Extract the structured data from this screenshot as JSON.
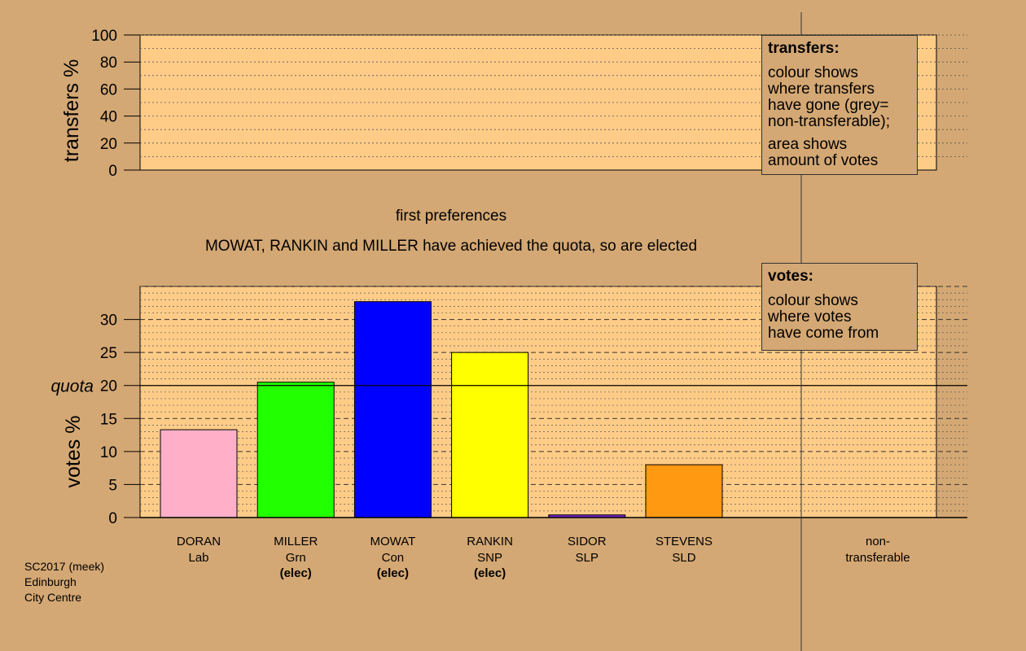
{
  "credit": {
    "lines": [
      "SC2017 (meek)",
      "Edinburgh",
      "City Centre"
    ]
  },
  "transfers_panel": {
    "ylabel": "transfers %",
    "ylim": [
      0,
      100
    ],
    "ticks": [
      0,
      20,
      40,
      60,
      80,
      100
    ]
  },
  "transfers_box": {
    "title": "transfers:",
    "lines": [
      "colour shows",
      "where transfers",
      "have gone (grey=",
      "non-transferable);"
    ],
    "lines2": [
      "area shows",
      "amount of votes"
    ]
  },
  "stage_title": "first preferences",
  "stage_subtitle": "MOWAT, RANKIN and MILLER have achieved the quota, so are elected",
  "votes_box": {
    "title": "votes:",
    "lines": [
      "colour shows",
      "where votes",
      "have come from"
    ]
  },
  "chart_data": {
    "type": "bar",
    "ylabel": "votes %",
    "ylim": [
      0,
      35
    ],
    "yticks": [
      0,
      5,
      10,
      15,
      20,
      25,
      30
    ],
    "quota": {
      "label": "quota",
      "value": 20
    },
    "candidates": [
      {
        "name": "DORAN",
        "party": "Lab",
        "elected": "",
        "value": 13.3,
        "color": "#FFB0C8"
      },
      {
        "name": "MILLER",
        "party": "Grn",
        "elected": "(elec)",
        "value": 20.5,
        "color": "#22FF00"
      },
      {
        "name": "MOWAT",
        "party": "Con",
        "elected": "(elec)",
        "value": 32.7,
        "color": "#0000FF"
      },
      {
        "name": "RANKIN",
        "party": "SNP",
        "elected": "(elec)",
        "value": 25.0,
        "color": "#FFFF00"
      },
      {
        "name": "SIDOR",
        "party": "SLP",
        "elected": "",
        "value": 0.4,
        "color": "#7722CC"
      },
      {
        "name": "STEVENS",
        "party": "SLD",
        "elected": "",
        "value": 8.0,
        "color": "#FF9911"
      }
    ],
    "nontransferable": {
      "label_line1": "non-",
      "label_line2": "transferable",
      "value": 0
    }
  },
  "colors": {
    "background": "#D4A874",
    "panel": "#FFCC88"
  }
}
